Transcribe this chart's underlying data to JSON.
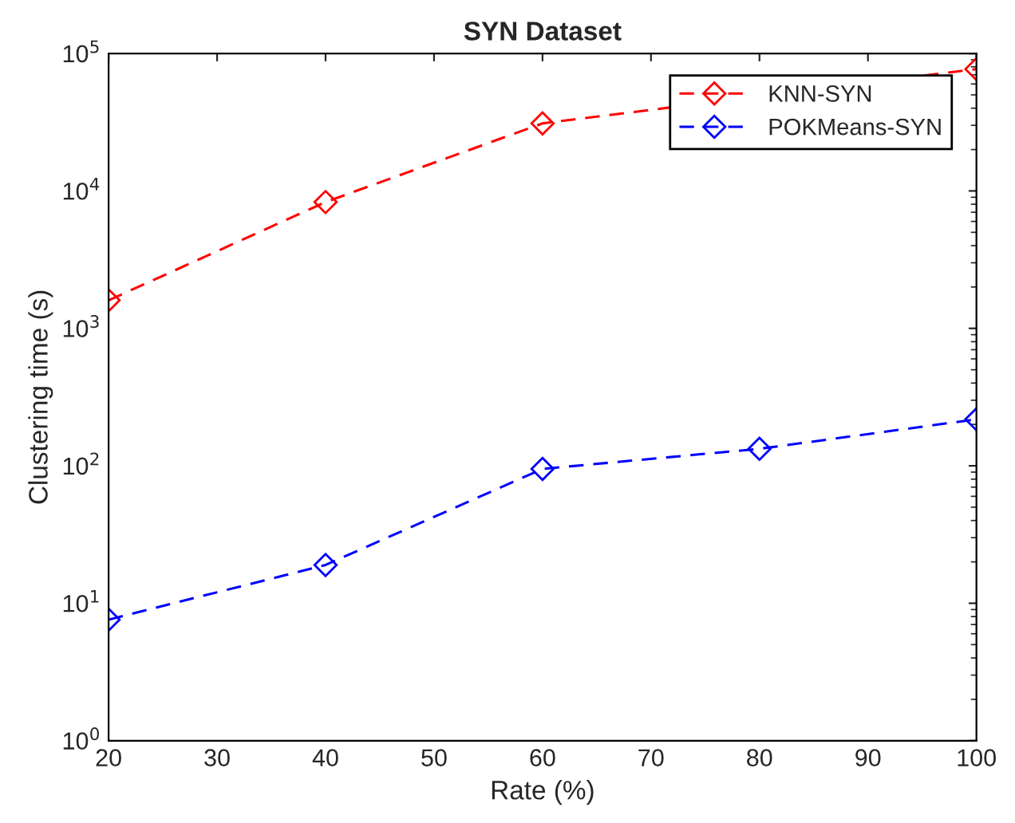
{
  "chart_data": {
    "type": "line",
    "title": "SYN Dataset",
    "xlabel": "Rate (%)",
    "ylabel": "Clustering time (s)",
    "x": [
      20,
      40,
      60,
      80,
      100
    ],
    "series": [
      {
        "name": "KNN-SYN",
        "color": "#ff0000",
        "values": [
          1600,
          8300,
          31000,
          null,
          77000
        ]
      },
      {
        "name": "POKMeans-SYN",
        "color": "#0000ff",
        "values": [
          7.6,
          19,
          95,
          133,
          218
        ]
      }
    ],
    "log": "y",
    "xlim": [
      20,
      100
    ],
    "xticks": [
      20,
      30,
      40,
      50,
      60,
      70,
      80,
      90,
      100
    ],
    "ylim": [
      1,
      100000
    ],
    "yticks": [
      {
        "value": 1,
        "label": "10$^{0}$"
      },
      {
        "value": 10,
        "label": "10$^{1}$"
      },
      {
        "value": 100,
        "label": "10$^{2}$"
      },
      {
        "value": 1000,
        "label": "10$^{3}$"
      },
      {
        "value": 10000,
        "label": "10$^{4}$"
      },
      {
        "value": 100000,
        "label": "10$^{5}$"
      }
    ],
    "grid": false,
    "legend": "top right",
    "marker": "diamond",
    "line_style": "dashed"
  }
}
